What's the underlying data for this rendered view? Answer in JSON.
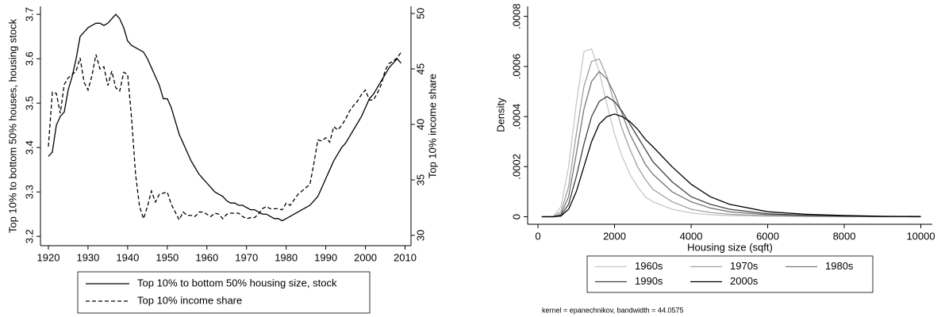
{
  "chart_data": [
    {
      "type": "line",
      "ylabel": "Top 10% to bottom 50% houses, housing stock",
      "y2label": "Top 10% income share",
      "xlim": [
        1918,
        2011.5
      ],
      "xticks": [
        1920,
        1930,
        1940,
        1950,
        1960,
        1970,
        1980,
        1990,
        2000,
        2010
      ],
      "ylim": [
        3.179,
        3.718
      ],
      "yticks": [
        3.2,
        3.3,
        3.4,
        3.5,
        3.6,
        3.7
      ],
      "y2lim": [
        29.07,
        50.64
      ],
      "y2ticks": [
        30,
        35,
        40,
        45,
        50
      ],
      "grid": false,
      "legend": "bottom",
      "x": [
        1920,
        1921,
        1922,
        1923,
        1924,
        1925,
        1926,
        1927,
        1928,
        1929,
        1930,
        1931,
        1932,
        1933,
        1934,
        1935,
        1936,
        1937,
        1938,
        1939,
        1940,
        1941,
        1942,
        1943,
        1944,
        1945,
        1946,
        1947,
        1948,
        1949,
        1950,
        1951,
        1952,
        1953,
        1954,
        1955,
        1956,
        1957,
        1958,
        1959,
        1960,
        1961,
        1962,
        1963,
        1964,
        1965,
        1966,
        1967,
        1968,
        1969,
        1970,
        1971,
        1972,
        1973,
        1974,
        1975,
        1976,
        1977,
        1978,
        1979,
        1980,
        1981,
        1982,
        1983,
        1984,
        1985,
        1986,
        1987,
        1988,
        1989,
        1990,
        1991,
        1992,
        1993,
        1994,
        1995,
        1996,
        1997,
        1998,
        1999,
        2000,
        2001,
        2002,
        2003,
        2004,
        2005,
        2006,
        2007,
        2008,
        2009
      ],
      "series": [
        {
          "name": "Top 10% to bottom 50% housing size, stock",
          "color": "#000000",
          "line_style": "solid",
          "values": [
            3.38,
            3.39,
            3.45,
            3.47,
            3.48,
            3.53,
            3.56,
            3.6,
            3.65,
            3.66,
            3.67,
            3.675,
            3.68,
            3.68,
            3.675,
            3.68,
            3.69,
            3.7,
            3.69,
            3.67,
            3.64,
            3.63,
            3.625,
            3.62,
            3.615,
            3.6,
            3.58,
            3.56,
            3.54,
            3.51,
            3.51,
            3.49,
            3.46,
            3.43,
            3.41,
            3.39,
            3.37,
            3.355,
            3.34,
            3.33,
            3.32,
            3.31,
            3.3,
            3.295,
            3.29,
            3.28,
            3.275,
            3.275,
            3.27,
            3.27,
            3.265,
            3.26,
            3.26,
            3.255,
            3.25,
            3.25,
            3.245,
            3.24,
            3.24,
            3.235,
            3.24,
            3.245,
            3.25,
            3.255,
            3.26,
            3.265,
            3.27,
            3.28,
            3.29,
            3.31,
            3.33,
            3.35,
            3.37,
            3.385,
            3.4,
            3.41,
            3.425,
            3.44,
            3.455,
            3.47,
            3.49,
            3.51,
            3.52,
            3.535,
            3.55,
            3.565,
            3.58,
            3.59,
            3.6,
            3.59
          ]
        },
        {
          "name": "Top 10% income share",
          "color": "#000000",
          "line_style": "dashed",
          "axis": "y2",
          "values": [
            38,
            42.9,
            42.8,
            41,
            43.6,
            44.2,
            44.5,
            44.8,
            46,
            43.8,
            43.1,
            44.4,
            46.3,
            45,
            45.2,
            43.5,
            44.8,
            43.3,
            43,
            44.7,
            44.5,
            40.5,
            35.5,
            32.6,
            31.5,
            32.6,
            34,
            33,
            33.7,
            33.8,
            33.9,
            32.8,
            32.1,
            31.4,
            32.1,
            31.8,
            31.8,
            31.7,
            32.1,
            32.1,
            31.9,
            31.7,
            32,
            31.9,
            31.5,
            31.9,
            32,
            32,
            32,
            31.7,
            31.5,
            31.6,
            31.6,
            31.9,
            32.4,
            32.6,
            32.4,
            32.4,
            32.4,
            32.3,
            32.9,
            32.7,
            33.2,
            33.7,
            34,
            34.3,
            34.6,
            36.5,
            38.6,
            38.5,
            38.8,
            38.4,
            39.8,
            39.5,
            39.9,
            40.5,
            41.2,
            41.7,
            42.1,
            42.7,
            43.1,
            42.2,
            42.2,
            42.8,
            43.6,
            44.9,
            45.5,
            45.7,
            46,
            46.5
          ]
        }
      ]
    },
    {
      "type": "line",
      "xlabel": "Housing size (sqft)",
      "ylabel": "Density",
      "note": "kernel = epanechnikov, bandwidth = 44.0575",
      "xlim": [
        -270,
        10300
      ],
      "xticks": [
        0,
        2000,
        4000,
        6000,
        8000,
        10000
      ],
      "ylim": [
        -3e-05,
        0.00084
      ],
      "yticks": [
        0,
        {
          "value": 0.0002,
          "label": ".0002"
        },
        {
          "value": 0.0004,
          "label": ".0004"
        },
        {
          "value": 0.0006,
          "label": ".0006"
        },
        {
          "value": 0.0008,
          "label": ".0008"
        }
      ],
      "grid": false,
      "legend": "bottom",
      "x": [
        100,
        400,
        600,
        800,
        1000,
        1200,
        1400,
        1600,
        1800,
        2000,
        2200,
        2400,
        2600,
        2800,
        3000,
        3500,
        4000,
        4500,
        5000,
        6000,
        7000,
        8000,
        9000,
        10000
      ],
      "series": [
        {
          "name": "1960s",
          "color": "#c8c8c8",
          "line_style": "solid",
          "values": [
            0,
            2e-06,
            4e-05,
            0.0002,
            0.00045,
            0.00066,
            0.00067,
            0.00058,
            0.00045,
            0.00033,
            0.00024,
            0.00017,
            0.00012,
            8e-05,
            6e-05,
            3e-05,
            1.5e-05,
            8e-06,
            5e-06,
            2e-06,
            1e-06,
            0,
            0,
            0
          ]
        },
        {
          "name": "1970s",
          "color": "#a0a0a0",
          "line_style": "solid",
          "values": [
            0,
            1e-06,
            2e-05,
            0.00012,
            0.00033,
            0.00052,
            0.00062,
            0.00063,
            0.00056,
            0.00045,
            0.00035,
            0.00027,
            0.0002,
            0.00015,
            0.00011,
            6e-05,
            3e-05,
            1.7e-05,
            1e-05,
            4e-06,
            2e-06,
            1e-06,
            0,
            0
          ]
        },
        {
          "name": "1980s",
          "color": "#787878",
          "line_style": "solid",
          "values": [
            0,
            0,
            1e-05,
            8e-05,
            0.00025,
            0.00043,
            0.00054,
            0.00058,
            0.00055,
            0.00049,
            0.00041,
            0.00033,
            0.00027,
            0.00021,
            0.00017,
            0.0001,
            6e-05,
            3.5e-05,
            2e-05,
            8e-06,
            4e-06,
            2e-06,
            1e-06,
            0
          ]
        },
        {
          "name": "1990s",
          "color": "#404040",
          "line_style": "solid",
          "values": [
            0,
            0,
            5e-06,
            5e-05,
            0.00016,
            0.00029,
            0.0004,
            0.00046,
            0.00048,
            0.00046,
            0.00042,
            0.00037,
            0.00032,
            0.00027,
            0.00022,
            0.00014,
            8e-05,
            5e-05,
            3e-05,
            1.2e-05,
            6e-06,
            3e-06,
            1e-06,
            0
          ]
        },
        {
          "name": "2000s",
          "color": "#000000",
          "line_style": "solid",
          "values": [
            0,
            0,
            3e-06,
            3e-05,
            0.0001,
            0.0002,
            0.0003,
            0.00037,
            0.0004,
            0.00041,
            0.0004,
            0.00038,
            0.00035,
            0.00031,
            0.00028,
            0.0002,
            0.00013,
            8e-05,
            5e-05,
            2e-05,
            1e-05,
            5e-06,
            2e-06,
            1e-06
          ]
        }
      ]
    }
  ]
}
